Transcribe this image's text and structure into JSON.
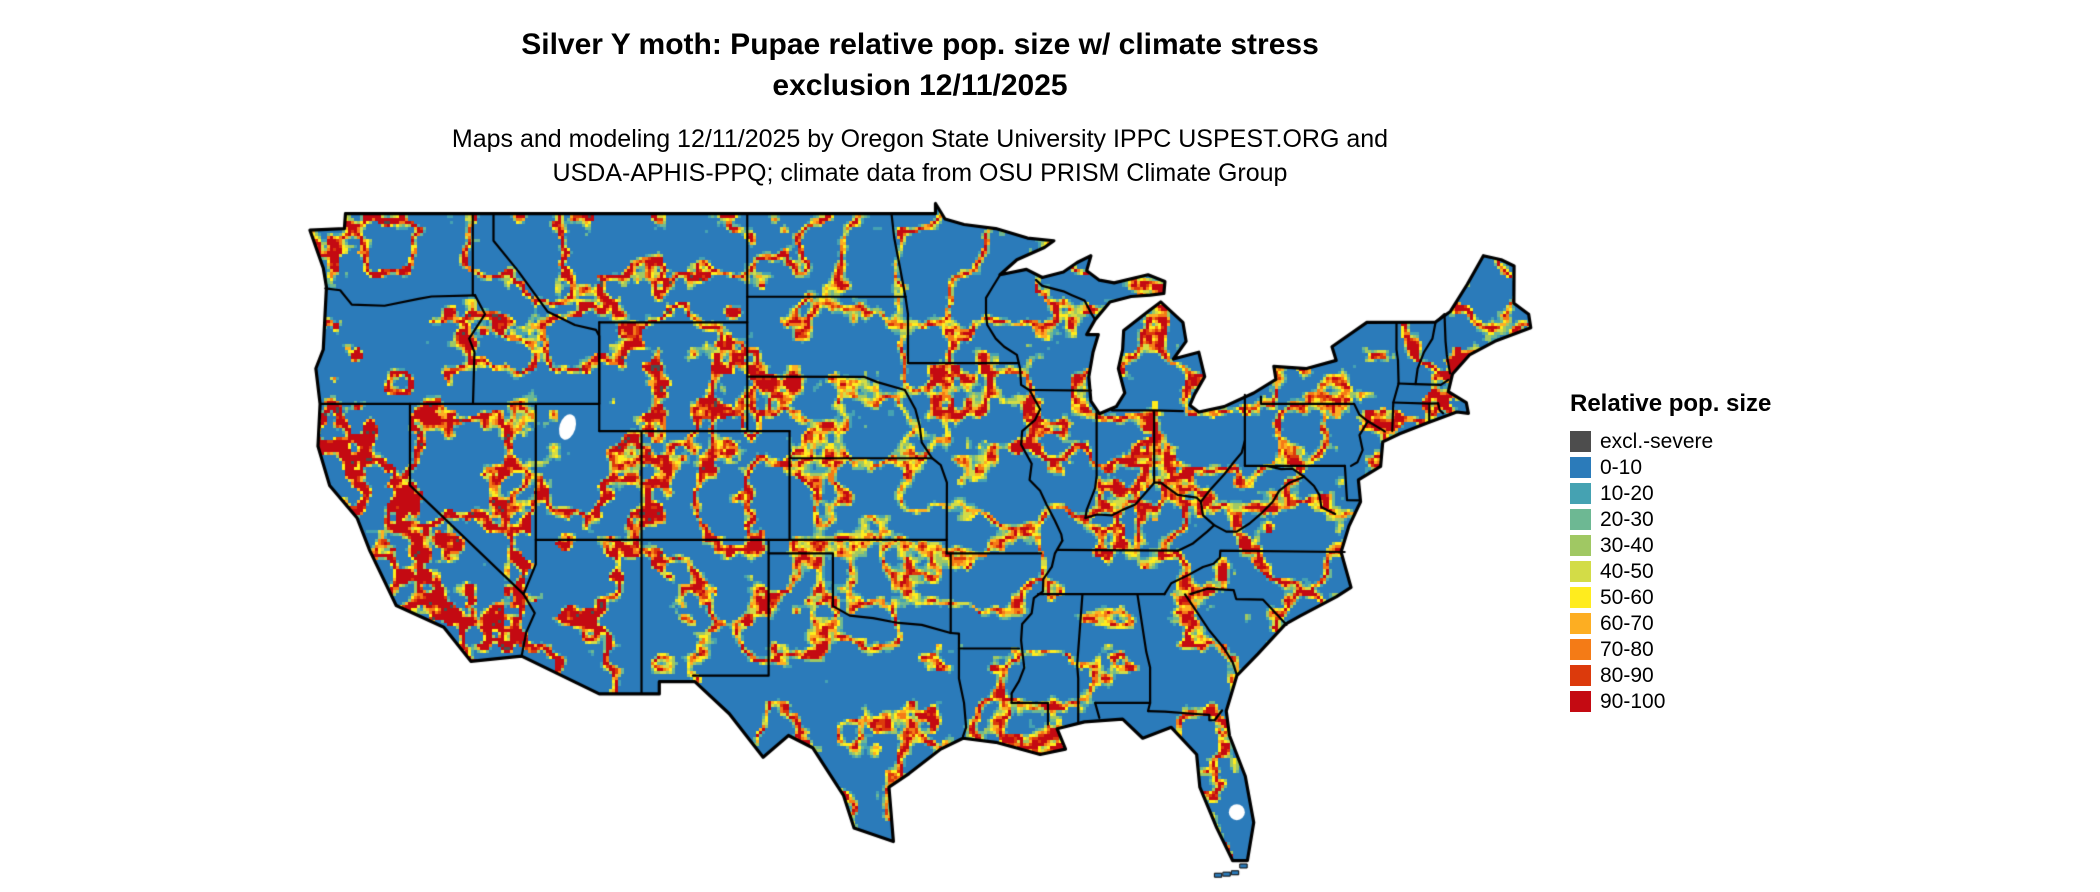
{
  "title": {
    "line1": "Silver Y moth: Pupae relative pop. size w/ climate stress",
    "line2": "exclusion 12/11/2025"
  },
  "subtitle": {
    "line1": "Maps and modeling 12/11/2025 by Oregon State University IPPC USPEST.ORG and",
    "line2": "USDA-APHIS-PPQ; climate data from OSU PRISM Climate Group"
  },
  "map": {
    "region": "Continental United States",
    "background_color": "#ffffff",
    "boundary_color": "#000000",
    "base_fill_color": "#2b7bba"
  },
  "legend": {
    "title": "Relative pop. size",
    "items": [
      {
        "label": "excl.-severe",
        "color": "#4d4d4d"
      },
      {
        "label": "0-10",
        "color": "#2b7bba"
      },
      {
        "label": "10-20",
        "color": "#45a2b2"
      },
      {
        "label": "20-30",
        "color": "#6db893"
      },
      {
        "label": "30-40",
        "color": "#a0c863"
      },
      {
        "label": "40-50",
        "color": "#d3dc47"
      },
      {
        "label": "50-60",
        "color": "#ffec1e"
      },
      {
        "label": "60-70",
        "color": "#fdae22"
      },
      {
        "label": "70-80",
        "color": "#f47b16"
      },
      {
        "label": "80-90",
        "color": "#dc3a0c"
      },
      {
        "label": "90-100",
        "color": "#c40a12"
      }
    ]
  }
}
